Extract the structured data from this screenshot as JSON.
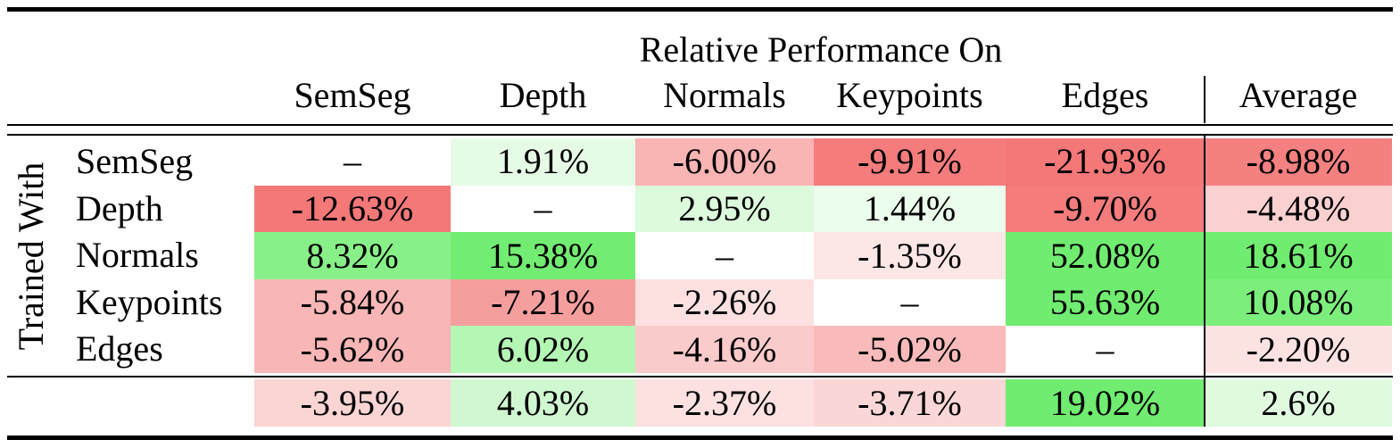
{
  "header": {
    "group": "Relative Performance On",
    "columns": [
      "SemSeg",
      "Depth",
      "Normals",
      "Keypoints",
      "Edges",
      "Average"
    ]
  },
  "table": {
    "side_label": "Trained With",
    "rows": [
      {
        "label": "SemSeg",
        "cells": [
          "–",
          "1.91%",
          "-6.00%",
          "-9.91%",
          "-21.93%",
          "-8.98%"
        ],
        "colors": [
          "#ffffff",
          "#e6fbe6",
          "#f9b4b4",
          "#f57c7c",
          "#f47878",
          "#f48080"
        ]
      },
      {
        "label": "Depth",
        "cells": [
          "-12.63%",
          "–",
          "2.95%",
          "1.44%",
          "-9.70%",
          "-4.48%"
        ],
        "colors": [
          "#f47878",
          "#ffffff",
          "#dcfadc",
          "#ebfdeb",
          "#f47c7c",
          "#fbd0d0"
        ]
      },
      {
        "label": "Normals",
        "cells": [
          "8.32%",
          "15.38%",
          "–",
          "-1.35%",
          "52.08%",
          "18.61%"
        ],
        "colors": [
          "#88f088",
          "#72ec72",
          "#ffffff",
          "#fde6e6",
          "#70ec70",
          "#70ec70"
        ]
      },
      {
        "label": "Keypoints",
        "cells": [
          "-5.84%",
          "-7.21%",
          "-2.26%",
          "–",
          "55.63%",
          "10.08%"
        ],
        "colors": [
          "#f8b6b6",
          "#f59e9e",
          "#fde0e0",
          "#ffffff",
          "#70ec70",
          "#7cee7c"
        ]
      },
      {
        "label": "Edges",
        "cells": [
          "-5.62%",
          "6.02%",
          "-4.16%",
          "-5.02%",
          "–",
          "-2.20%"
        ],
        "colors": [
          "#f8b6b6",
          "#b4f6b4",
          "#fbcaca",
          "#f8baba",
          "#ffffff",
          "#fde2e2"
        ]
      }
    ],
    "footer": {
      "cells": [
        "-3.95%",
        "4.03%",
        "-2.37%",
        "-3.71%",
        "19.02%",
        "2.6%"
      ],
      "colors": [
        "#fbd4d4",
        "#d0f8d0",
        "#fde0e0",
        "#fbd6d6",
        "#70ec70",
        "#e0fae0"
      ]
    }
  }
}
